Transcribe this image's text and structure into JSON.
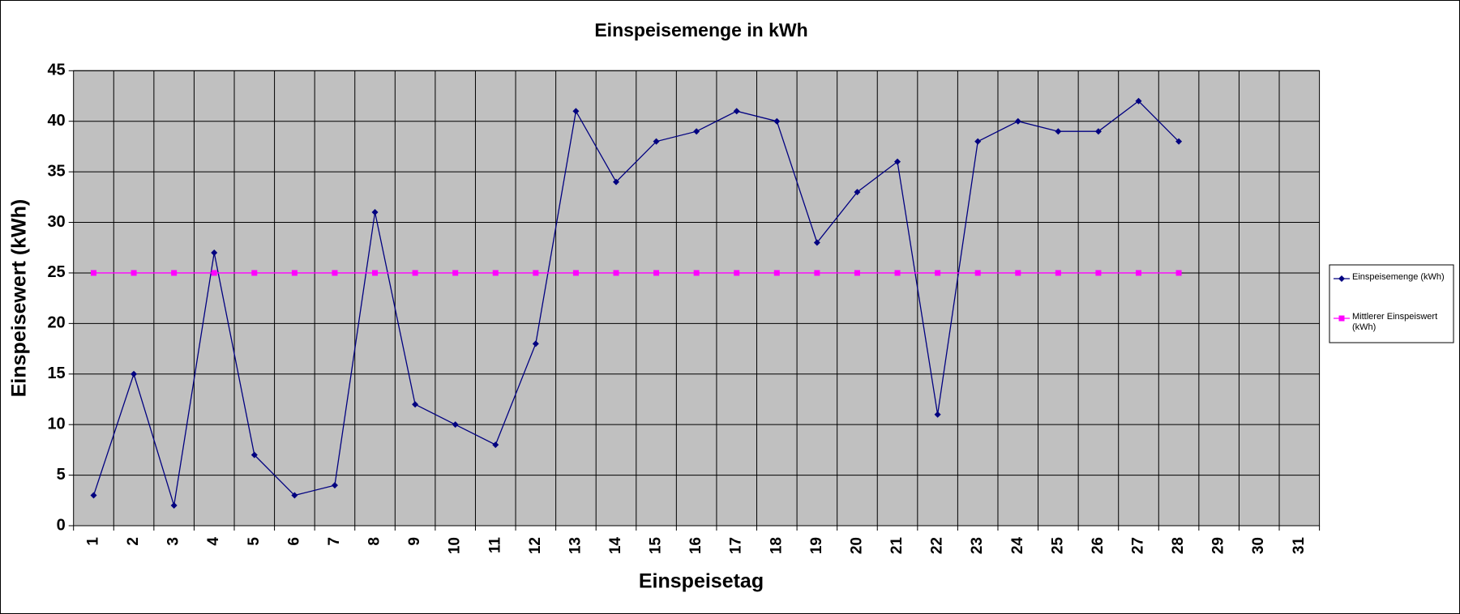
{
  "chart_data": {
    "type": "line",
    "title": "Einspeisemenge in kWh",
    "xlabel": "Einspeisetag",
    "ylabel": "Einspeisewert  (kWh)",
    "categories": [
      "1",
      "2",
      "3",
      "4",
      "5",
      "6",
      "7",
      "8",
      "9",
      "10",
      "11",
      "12",
      "13",
      "14",
      "15",
      "16",
      "17",
      "18",
      "19",
      "20",
      "21",
      "22",
      "23",
      "24",
      "25",
      "26",
      "27",
      "28",
      "29",
      "30",
      "31"
    ],
    "series": [
      {
        "name": "Einspeisemenge (kWh)",
        "color": "#000080",
        "marker": "diamond",
        "values": [
          3,
          15,
          2,
          27,
          7,
          3,
          4,
          31,
          12,
          10,
          8,
          18,
          41,
          34,
          38,
          39,
          41,
          40,
          28,
          33,
          36,
          11,
          38,
          40,
          39,
          39,
          42,
          38,
          null,
          null,
          null
        ]
      },
      {
        "name": "Mittlerer Einspeiswert (kWh)",
        "color": "#ff00ff",
        "marker": "square",
        "values": [
          25,
          25,
          25,
          25,
          25,
          25,
          25,
          25,
          25,
          25,
          25,
          25,
          25,
          25,
          25,
          25,
          25,
          25,
          25,
          25,
          25,
          25,
          25,
          25,
          25,
          25,
          25,
          25,
          null,
          null,
          null
        ]
      }
    ],
    "ylim": [
      0,
      45
    ],
    "yticks": [
      0,
      5,
      10,
      15,
      20,
      25,
      30,
      35,
      40,
      45
    ],
    "grid": true,
    "legend": "right",
    "plot_background": "#c0c0c0"
  }
}
